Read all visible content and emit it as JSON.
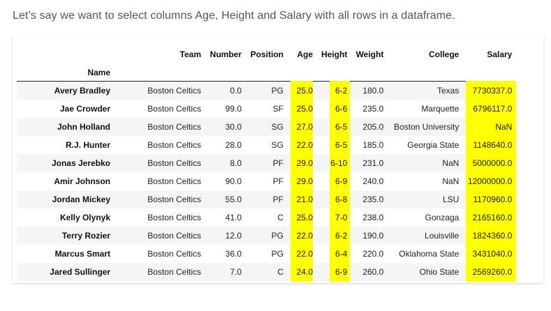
{
  "intro": "Let’s say we want to select columns Age, Height and Salary with all rows in a dataframe.",
  "highlight_color": "#ffff00",
  "table": {
    "index_name": "Name",
    "columns": [
      "Team",
      "Number",
      "Position",
      "Age",
      "Height",
      "Weight",
      "College",
      "Salary"
    ],
    "rows": [
      {
        "name": "Avery Bradley",
        "team": "Boston Celtics",
        "number": "0.0",
        "position": "PG",
        "age": "25.0",
        "height": "6-2",
        "weight": "180.0",
        "college": "Texas",
        "salary": "7730337.0"
      },
      {
        "name": "Jae Crowder",
        "team": "Boston Celtics",
        "number": "99.0",
        "position": "SF",
        "age": "25.0",
        "height": "6-6",
        "weight": "235.0",
        "college": "Marquette",
        "salary": "6796117.0"
      },
      {
        "name": "John Holland",
        "team": "Boston Celtics",
        "number": "30.0",
        "position": "SG",
        "age": "27.0",
        "height": "6-5",
        "weight": "205.0",
        "college": "Boston University",
        "salary": "NaN"
      },
      {
        "name": "R.J. Hunter",
        "team": "Boston Celtics",
        "number": "28.0",
        "position": "SG",
        "age": "22.0",
        "height": "6-5",
        "weight": "185.0",
        "college": "Georgia State",
        "salary": "1148640.0"
      },
      {
        "name": "Jonas Jerebko",
        "team": "Boston Celtics",
        "number": "8.0",
        "position": "PF",
        "age": "29.0",
        "height": "6-10",
        "weight": "231.0",
        "college": "NaN",
        "salary": "5000000.0"
      },
      {
        "name": "Amir Johnson",
        "team": "Boston Celtics",
        "number": "90.0",
        "position": "PF",
        "age": "29.0",
        "height": "6-9",
        "weight": "240.0",
        "college": "NaN",
        "salary": "12000000.0"
      },
      {
        "name": "Jordan Mickey",
        "team": "Boston Celtics",
        "number": "55.0",
        "position": "PF",
        "age": "21.0",
        "height": "6-8",
        "weight": "235.0",
        "college": "LSU",
        "salary": "1170960.0"
      },
      {
        "name": "Kelly Olynyk",
        "team": "Boston Celtics",
        "number": "41.0",
        "position": "C",
        "age": "25.0",
        "height": "7-0",
        "weight": "238.0",
        "college": "Gonzaga",
        "salary": "2165160.0"
      },
      {
        "name": "Terry Rozier",
        "team": "Boston Celtics",
        "number": "12.0",
        "position": "PG",
        "age": "22.0",
        "height": "6-2",
        "weight": "190.0",
        "college": "Louisville",
        "salary": "1824360.0"
      },
      {
        "name": "Marcus Smart",
        "team": "Boston Celtics",
        "number": "36.0",
        "position": "PG",
        "age": "22.0",
        "height": "6-4",
        "weight": "220.0",
        "college": "Oklahoma State",
        "salary": "3431040.0"
      },
      {
        "name": "Jared Sullinger",
        "team": "Boston Celtics",
        "number": "7.0",
        "position": "C",
        "age": "24.0",
        "height": "6-9",
        "weight": "260.0",
        "college": "Ohio State",
        "salary": "2569260.0"
      }
    ]
  }
}
